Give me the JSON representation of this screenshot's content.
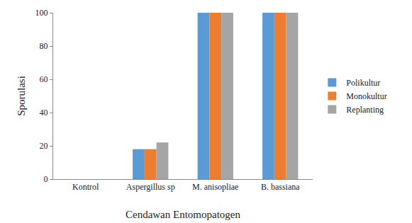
{
  "chart_data": {
    "type": "bar",
    "x_label": "Cendawan Entomopatogen",
    "y_label": "Sporulasi",
    "categories": [
      "Kontrol",
      "Aspergillus sp",
      "M. anisopliae",
      "B. bassiana"
    ],
    "series": [
      {
        "name": "Polikultur",
        "color": "#5b9bd5",
        "values": [
          0,
          18,
          100,
          100
        ]
      },
      {
        "name": "Monokultur",
        "color": "#ed7d31",
        "values": [
          0,
          18,
          100,
          100
        ]
      },
      {
        "name": "Replanting",
        "color": "#a5a5a5",
        "values": [
          0,
          22,
          100,
          100
        ]
      }
    ],
    "ylim": [
      0,
      100
    ],
    "yticks": [
      0,
      20,
      40,
      60,
      80,
      100
    ],
    "grid": false,
    "legend": "right"
  }
}
